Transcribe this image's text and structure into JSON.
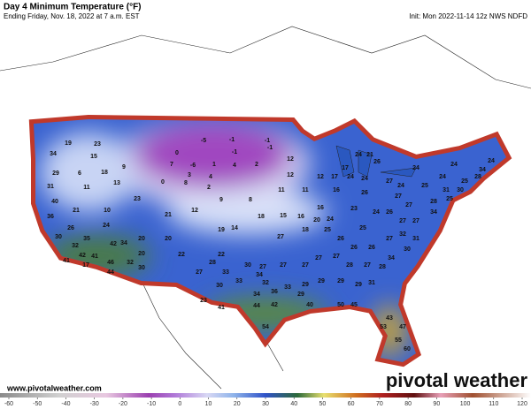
{
  "header": {
    "title": "Day 4 Minimum Temperature (°F)",
    "subtitle": "Ending Friday, Nov. 18, 2022 at 7 a.m. EST",
    "init": "Init: Mon 2022-11-14 12z NWS NDFD"
  },
  "footer": {
    "website": "www.pivotalweather.com",
    "brand": "pivotal weather"
  },
  "colorbar": {
    "ticks": [
      -60,
      -50,
      -40,
      -30,
      -20,
      -10,
      0,
      10,
      20,
      30,
      40,
      50,
      60,
      70,
      80,
      90,
      100,
      110,
      120
    ]
  },
  "map": {
    "labels": [
      19,
      23,
      34,
      15,
      18,
      6,
      29,
      13,
      31,
      11,
      9,
      -5,
      -1,
      -1,
      -1,
      -1,
      0,
      7,
      -6,
      1,
      4,
      3,
      4,
      2,
      12,
      0,
      8,
      2,
      23,
      9,
      8,
      11,
      12,
      11,
      12,
      17,
      16,
      24,
      24,
      26,
      17,
      24,
      21,
      26,
      24,
      25,
      27,
      24,
      24,
      24,
      25,
      28,
      24,
      34,
      31,
      30,
      25,
      28,
      27,
      27,
      26,
      24,
      23,
      16,
      15,
      16,
      20,
      24,
      18,
      27,
      18,
      14,
      19,
      12,
      21,
      10,
      21,
      40,
      26,
      30,
      36,
      24,
      35,
      32,
      42,
      34,
      20,
      20,
      22,
      20,
      42,
      41,
      46,
      44,
      32,
      30,
      41,
      17,
      22,
      28,
      30,
      27,
      27,
      27,
      33,
      33,
      34,
      32,
      30,
      27,
      27,
      27,
      26,
      26,
      27,
      32,
      27,
      27,
      34,
      25,
      26,
      25,
      28,
      27,
      28,
      34,
      30,
      31,
      29,
      29,
      31,
      29,
      29,
      33,
      29,
      36,
      34,
      23,
      41,
      44,
      42,
      40,
      50,
      45,
      43,
      54,
      47,
      55,
      53,
      60
    ]
  }
}
